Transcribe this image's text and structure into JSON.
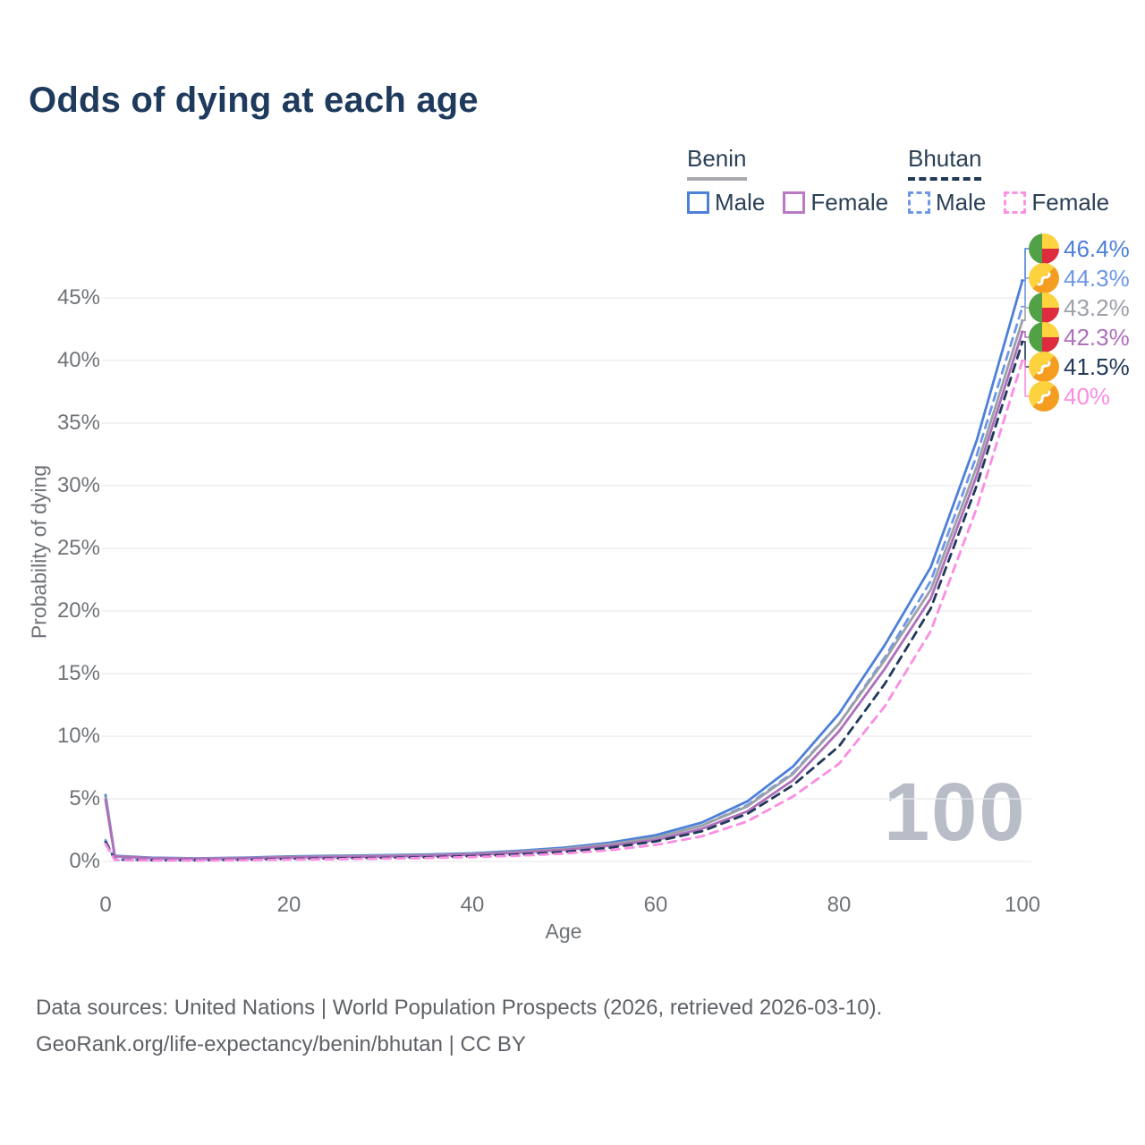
{
  "title": "Odds of dying at each age",
  "legend": {
    "groups": [
      {
        "id": "benin",
        "title": "Benin",
        "underline_style": "solid",
        "underline_color": "#a9a9b0",
        "items": [
          {
            "label": "Male",
            "swatch_color": "#4d80d8",
            "swatch_style": "solid"
          },
          {
            "label": "Female",
            "swatch_color": "#bb79c3",
            "swatch_style": "solid"
          }
        ]
      },
      {
        "id": "bhutan",
        "title": "Bhutan",
        "underline_style": "dashed",
        "underline_color": "#22395a",
        "items": [
          {
            "label": "Male",
            "swatch_color": "#6e97e6",
            "swatch_style": "dashed"
          },
          {
            "label": "Female",
            "swatch_color": "#fb90e4",
            "swatch_style": "dashed"
          }
        ]
      }
    ]
  },
  "watermark": "100",
  "footer": {
    "line1": "Data sources: United Nations | World Population Prospects (2026, retrieved 2026-03-10).",
    "line2": "GeoRank.org/life-expectancy/benin/bhutan | CC BY"
  },
  "colors": {
    "title_text": "#1e3a5c",
    "axis_text": "#6f7378",
    "grid": "#eaeaef",
    "watermark": "#b9bdc8",
    "footer_text": "#5e6268"
  },
  "chart_data": {
    "type": "line",
    "title": "Odds of dying at each age",
    "xlabel": "Age",
    "ylabel": "Probability of dying",
    "xlim": [
      0,
      100
    ],
    "ylim": [
      0,
      47
    ],
    "x_ticks": [
      "0",
      "20",
      "40",
      "60",
      "80",
      "100"
    ],
    "y_ticks": [
      "0%",
      "5%",
      "10%",
      "15%",
      "20%",
      "25%",
      "30%",
      "35%",
      "40%",
      "45%"
    ],
    "grid": true,
    "legend_position": "top-right",
    "x": [
      0,
      1,
      5,
      10,
      15,
      20,
      25,
      30,
      35,
      40,
      45,
      50,
      55,
      60,
      65,
      70,
      75,
      80,
      85,
      90,
      95,
      100
    ],
    "series": [
      {
        "name": "Benin Male",
        "country": "Benin",
        "sex": "Male",
        "style": "solid",
        "color": "#4d80d8",
        "flag": "benin",
        "end_label": "46.4%",
        "values": [
          5.3,
          0.45,
          0.3,
          0.25,
          0.3,
          0.4,
          0.45,
          0.5,
          0.55,
          0.65,
          0.85,
          1.1,
          1.5,
          2.1,
          3.1,
          4.8,
          7.6,
          11.8,
          17.3,
          23.5,
          33.6,
          46.4
        ]
      },
      {
        "name": "Bhutan Male",
        "country": "Bhutan",
        "sex": "Male",
        "style": "dashed",
        "color": "#6e97e6",
        "flag": "bhutan",
        "end_label": "44.3%",
        "values": [
          1.7,
          0.16,
          0.1,
          0.1,
          0.16,
          0.25,
          0.3,
          0.34,
          0.4,
          0.5,
          0.65,
          0.9,
          1.3,
          1.9,
          2.85,
          4.5,
          7.1,
          11.0,
          16.3,
          22.4,
          32.4,
          44.3
        ]
      },
      {
        "name": "Benin Both sexes",
        "country": "Benin",
        "sex": "Both",
        "style": "solid",
        "color": "#9ca0a8",
        "flag": "benin",
        "end_label": "43.2%",
        "values": [
          5.1,
          0.42,
          0.28,
          0.23,
          0.28,
          0.36,
          0.4,
          0.45,
          0.5,
          0.6,
          0.78,
          1.0,
          1.38,
          1.9,
          2.85,
          4.4,
          7.0,
          11.0,
          16.1,
          21.7,
          31.5,
          43.2
        ]
      },
      {
        "name": "Benin Female",
        "country": "Benin",
        "sex": "Female",
        "style": "solid",
        "color": "#ae6fba",
        "flag": "benin",
        "end_label": "42.3%",
        "values": [
          4.9,
          0.4,
          0.26,
          0.21,
          0.25,
          0.32,
          0.36,
          0.4,
          0.46,
          0.55,
          0.7,
          0.92,
          1.25,
          1.7,
          2.6,
          4.0,
          6.5,
          10.4,
          15.4,
          21.0,
          30.8,
          42.3
        ]
      },
      {
        "name": "Bhutan Both sexes",
        "country": "Bhutan",
        "sex": "Both",
        "style": "dashed",
        "color": "#22395a",
        "flag": "bhutan",
        "end_label": "41.5%",
        "values": [
          1.55,
          0.14,
          0.09,
          0.09,
          0.13,
          0.2,
          0.24,
          0.28,
          0.33,
          0.42,
          0.55,
          0.76,
          1.1,
          1.6,
          2.4,
          3.8,
          6.1,
          9.2,
          14.2,
          20.2,
          30.0,
          41.5
        ]
      },
      {
        "name": "Bhutan Female",
        "country": "Bhutan",
        "sex": "Female",
        "style": "dashed",
        "color": "#fb8de2",
        "flag": "bhutan",
        "end_label": "40%",
        "values": [
          1.4,
          0.12,
          0.08,
          0.08,
          0.1,
          0.15,
          0.18,
          0.22,
          0.27,
          0.35,
          0.46,
          0.63,
          0.9,
          1.32,
          2.0,
          3.2,
          5.2,
          7.8,
          12.4,
          18.4,
          28.2,
          40.0
        ]
      }
    ]
  }
}
